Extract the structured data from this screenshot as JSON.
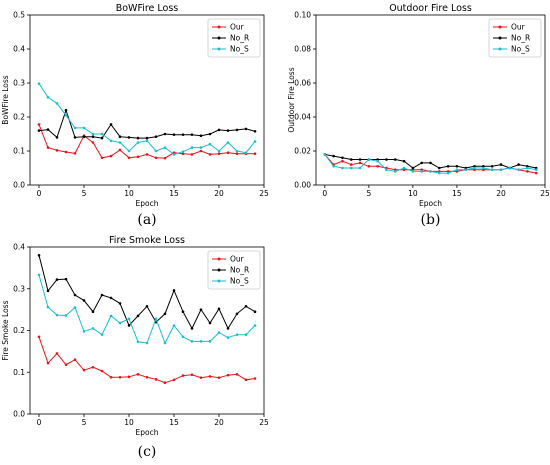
{
  "chart_data": [
    {
      "type": "line",
      "caption": "(a)",
      "title": "BoWFire Loss",
      "xlabel": "Epoch",
      "ylabel": "BoWFire Loss",
      "xlim": [
        -1,
        25
      ],
      "ylim": [
        0,
        0.5
      ],
      "xticks": [
        0,
        5,
        10,
        15,
        20,
        25
      ],
      "yticks": [
        0.0,
        0.1,
        0.2,
        0.3,
        0.4,
        0.5
      ],
      "ytick_labels": [
        "0.0",
        "0.1",
        "0.2",
        "0.3",
        "0.4",
        "0.5"
      ],
      "legend_position": "top-right",
      "grid": false,
      "x": [
        0,
        1,
        2,
        3,
        4,
        5,
        6,
        7,
        8,
        9,
        10,
        11,
        12,
        13,
        14,
        15,
        16,
        17,
        18,
        19,
        20,
        21,
        22,
        23,
        24
      ],
      "series": [
        {
          "name": "Our",
          "color": "#e8141b",
          "marker": "o",
          "values": [
            0.178,
            0.11,
            0.102,
            0.097,
            0.093,
            0.145,
            0.125,
            0.08,
            0.085,
            0.103,
            0.08,
            0.083,
            0.09,
            0.08,
            0.079,
            0.095,
            0.092,
            0.09,
            0.1,
            0.09,
            0.092,
            0.095,
            0.092,
            0.092,
            0.092
          ]
        },
        {
          "name": "No_R",
          "color": "#000000",
          "marker": "o",
          "values": [
            0.16,
            0.163,
            0.14,
            0.22,
            0.14,
            0.142,
            0.142,
            0.138,
            0.178,
            0.142,
            0.14,
            0.138,
            0.138,
            0.142,
            0.15,
            0.148,
            0.148,
            0.148,
            0.145,
            0.15,
            0.162,
            0.16,
            0.162,
            0.165,
            0.158
          ]
        },
        {
          "name": "No_S",
          "color": "#18bfcf",
          "marker": "o",
          "values": [
            0.298,
            0.258,
            0.24,
            0.205,
            0.168,
            0.168,
            0.15,
            0.15,
            0.13,
            0.125,
            0.1,
            0.125,
            0.13,
            0.1,
            0.11,
            0.09,
            0.098,
            0.11,
            0.11,
            0.12,
            0.1,
            0.125,
            0.1,
            0.095,
            0.128
          ]
        }
      ]
    },
    {
      "type": "line",
      "caption": "(b)",
      "title": "Outdoor Fire Loss",
      "xlabel": "Epoch",
      "ylabel": "Outdoor Fire Loss",
      "xlim": [
        -1,
        25
      ],
      "ylim": [
        0,
        0.1
      ],
      "xticks": [
        0,
        5,
        10,
        15,
        20,
        25
      ],
      "yticks": [
        0.0,
        0.02,
        0.04,
        0.06,
        0.08,
        0.1
      ],
      "ytick_labels": [
        "0.00",
        "0.02",
        "0.04",
        "0.06",
        "0.08",
        "0.10"
      ],
      "legend_position": "top-right",
      "grid": false,
      "x": [
        0,
        1,
        2,
        3,
        4,
        5,
        6,
        7,
        8,
        9,
        10,
        11,
        12,
        13,
        14,
        15,
        16,
        17,
        18,
        19,
        20,
        21,
        22,
        23,
        24
      ],
      "series": [
        {
          "name": "Our",
          "color": "#e8141b",
          "marker": "o",
          "values": [
            0.018,
            0.012,
            0.014,
            0.012,
            0.013,
            0.011,
            0.011,
            0.01,
            0.009,
            0.009,
            0.009,
            0.009,
            0.008,
            0.008,
            0.008,
            0.008,
            0.009,
            0.009,
            0.009,
            0.009,
            0.009,
            0.01,
            0.009,
            0.008,
            0.007
          ]
        },
        {
          "name": "No_R",
          "color": "#000000",
          "marker": "o",
          "values": [
            0.018,
            0.017,
            0.016,
            0.015,
            0.015,
            0.015,
            0.015,
            0.015,
            0.015,
            0.014,
            0.01,
            0.013,
            0.013,
            0.01,
            0.011,
            0.011,
            0.01,
            0.011,
            0.011,
            0.011,
            0.012,
            0.01,
            0.012,
            0.011,
            0.01
          ]
        },
        {
          "name": "No_S",
          "color": "#18bfcf",
          "marker": "o",
          "values": [
            0.018,
            0.011,
            0.01,
            0.01,
            0.01,
            0.015,
            0.014,
            0.009,
            0.008,
            0.01,
            0.008,
            0.008,
            0.008,
            0.007,
            0.007,
            0.009,
            0.009,
            0.01,
            0.01,
            0.009,
            0.009,
            0.01,
            0.009,
            0.01,
            0.009
          ]
        }
      ]
    },
    {
      "type": "line",
      "caption": "(c)",
      "title": "Fire Smoke Loss",
      "xlabel": "Epoch",
      "ylabel": "Fire Smoke Loss",
      "xlim": [
        -1,
        25
      ],
      "ylim": [
        0,
        0.4
      ],
      "xticks": [
        0,
        5,
        10,
        15,
        20,
        25
      ],
      "yticks": [
        0.0,
        0.1,
        0.2,
        0.3,
        0.4
      ],
      "ytick_labels": [
        "0.0",
        "0.1",
        "0.2",
        "0.3",
        "0.4"
      ],
      "legend_position": "top-right",
      "grid": false,
      "x": [
        0,
        1,
        2,
        3,
        4,
        5,
        6,
        7,
        8,
        9,
        10,
        11,
        12,
        13,
        14,
        15,
        16,
        17,
        18,
        19,
        20,
        21,
        22,
        23,
        24
      ],
      "series": [
        {
          "name": "Our",
          "color": "#e8141b",
          "marker": "o",
          "values": [
            0.185,
            0.122,
            0.145,
            0.118,
            0.13,
            0.105,
            0.112,
            0.103,
            0.088,
            0.088,
            0.089,
            0.095,
            0.088,
            0.083,
            0.075,
            0.082,
            0.092,
            0.094,
            0.087,
            0.09,
            0.087,
            0.093,
            0.095,
            0.082,
            0.085
          ]
        },
        {
          "name": "No_R",
          "color": "#000000",
          "marker": "o",
          "values": [
            0.38,
            0.295,
            0.322,
            0.323,
            0.285,
            0.272,
            0.245,
            0.285,
            0.278,
            0.265,
            0.212,
            0.235,
            0.258,
            0.22,
            0.24,
            0.296,
            0.245,
            0.205,
            0.25,
            0.218,
            0.252,
            0.205,
            0.24,
            0.258,
            0.245
          ]
        },
        {
          "name": "No_S",
          "color": "#18bfcf",
          "marker": "o",
          "values": [
            0.333,
            0.256,
            0.237,
            0.236,
            0.255,
            0.198,
            0.205,
            0.19,
            0.235,
            0.218,
            0.228,
            0.173,
            0.17,
            0.228,
            0.17,
            0.212,
            0.185,
            0.174,
            0.174,
            0.174,
            0.195,
            0.183,
            0.19,
            0.19,
            0.212
          ]
        }
      ]
    }
  ]
}
